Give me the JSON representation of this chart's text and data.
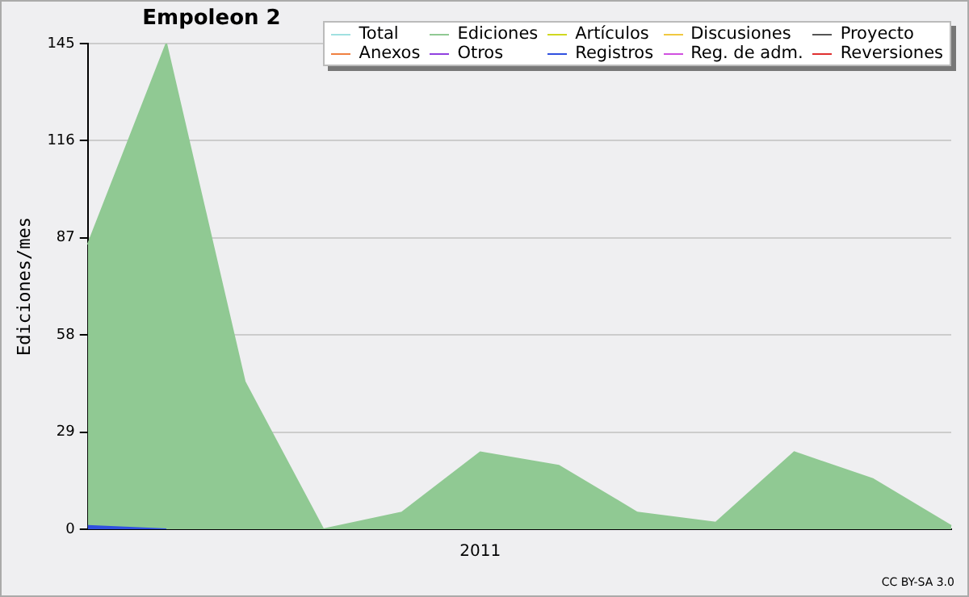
{
  "chart_data": {
    "type": "area",
    "title": "Empoleon 2",
    "ylabel": "Ediciones/mes",
    "categories": [
      null,
      null,
      null,
      null,
      null,
      "2011",
      null,
      null,
      null,
      null,
      null,
      null
    ],
    "ylim": [
      0,
      145
    ],
    "yticks": [
      0,
      29,
      58,
      87,
      116,
      145
    ],
    "grid": "y",
    "legend": "top right",
    "marker": "none",
    "annotations": [
      "CC BY-SA 3.0"
    ],
    "series": [
      {
        "name": "Total",
        "color": "#a0e0e0",
        "values": [
          null,
          null,
          null,
          null,
          null,
          null,
          null,
          null,
          null,
          null,
          null,
          null
        ]
      },
      {
        "name": "Anexos",
        "color": "#f08040",
        "values": [
          null,
          null,
          null,
          null,
          null,
          null,
          null,
          null,
          null,
          null,
          null,
          null
        ]
      },
      {
        "name": "Ediciones",
        "color": "#90c993",
        "values": [
          85,
          145,
          44,
          0,
          5,
          23,
          19,
          5,
          2,
          23,
          15,
          1
        ]
      },
      {
        "name": "Otros",
        "color": "#9040e0",
        "values": [
          null,
          null,
          null,
          null,
          null,
          null,
          null,
          null,
          null,
          null,
          null,
          null
        ]
      },
      {
        "name": "Artículos",
        "color": "#d0d820",
        "values": [
          null,
          null,
          null,
          null,
          null,
          null,
          null,
          null,
          null,
          null,
          null,
          null
        ]
      },
      {
        "name": "Registros",
        "color": "#3050e0",
        "values": [
          1,
          0,
          null,
          null,
          null,
          null,
          null,
          null,
          null,
          null,
          null,
          null
        ]
      },
      {
        "name": "Discusiones",
        "color": "#f0c840",
        "values": [
          null,
          null,
          null,
          null,
          null,
          null,
          null,
          null,
          null,
          null,
          null,
          null
        ]
      },
      {
        "name": "Reg. de adm.",
        "color": "#d050e0",
        "values": [
          null,
          null,
          null,
          null,
          null,
          null,
          null,
          null,
          null,
          null,
          null,
          null
        ]
      },
      {
        "name": "Proyecto",
        "color": "#555555",
        "values": [
          null,
          null,
          null,
          null,
          null,
          null,
          null,
          null,
          null,
          null,
          null,
          null
        ]
      },
      {
        "name": "Reversiones",
        "color": "#e03030",
        "values": [
          null,
          null,
          null,
          null,
          null,
          null,
          null,
          null,
          null,
          null,
          null,
          null
        ]
      }
    ]
  }
}
